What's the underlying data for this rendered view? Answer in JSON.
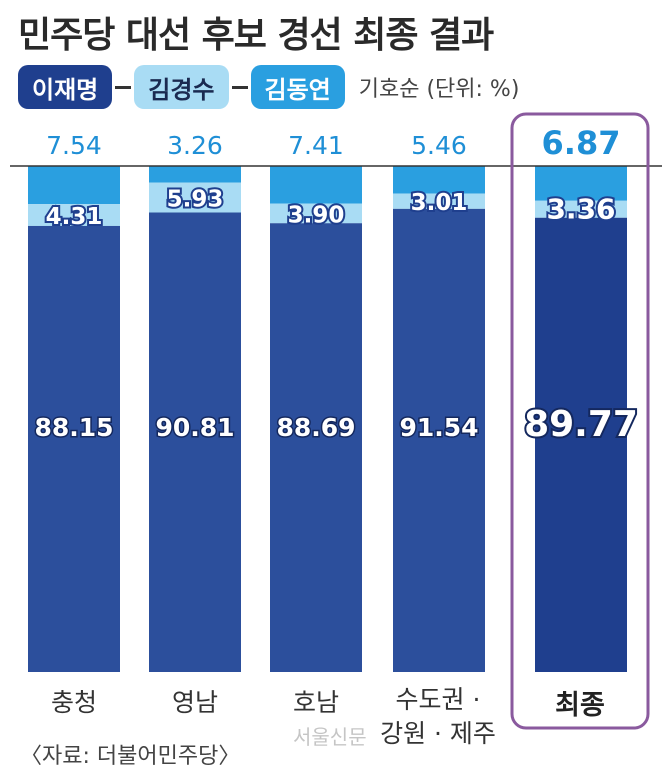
{
  "title": "민주당 대선 후보 경선 최종 결과",
  "legend": {
    "items": [
      {
        "label": "이재명",
        "color": "#1f3f8e",
        "text_color": "#ffffff"
      },
      {
        "label": "김경수",
        "color": "#a9dcf4",
        "text_color": "#1a2a50"
      },
      {
        "label": "김동연",
        "color": "#2a9fe0",
        "text_color": "#ffffff"
      }
    ],
    "note": "기호순  (단위: %)"
  },
  "chart_data": {
    "type": "bar",
    "stacked": true,
    "unit": "%",
    "ylim": [
      0,
      100
    ],
    "categories": [
      "충청",
      "영남",
      "호남",
      "수도권 · 강원 · 제주",
      "최종"
    ],
    "series": [
      {
        "name": "이재명",
        "color": "#2c4f9c",
        "values": [
          88.15,
          90.81,
          88.69,
          91.54,
          89.77
        ]
      },
      {
        "name": "김경수",
        "color": "#a9dcf4",
        "values": [
          4.31,
          5.93,
          3.9,
          3.01,
          3.36
        ]
      },
      {
        "name": "김동연",
        "color": "#2a9fe0",
        "values": [
          7.54,
          3.26,
          7.41,
          5.46,
          6.87
        ]
      }
    ],
    "top_labels": [
      "7.54",
      "3.26",
      "7.41",
      "5.46",
      "6.87"
    ],
    "middle_labels": [
      "4.31",
      "5.93",
      "3.90",
      "3.01",
      "3.36"
    ],
    "bottom_labels": [
      "88.15",
      "90.81",
      "88.69",
      "91.54",
      "89.77"
    ],
    "highlight_category": "최종",
    "highlight_color": "#8a5a9e"
  },
  "categories_display": {
    "c0": "충청",
    "c1": "영남",
    "c2": "호남",
    "c3_line1": "수도권 ·",
    "c3_line2": "강원 · 제주",
    "c4": "최종"
  },
  "source": "〈자료: 더불어민주당〉",
  "watermark": "서울신문"
}
